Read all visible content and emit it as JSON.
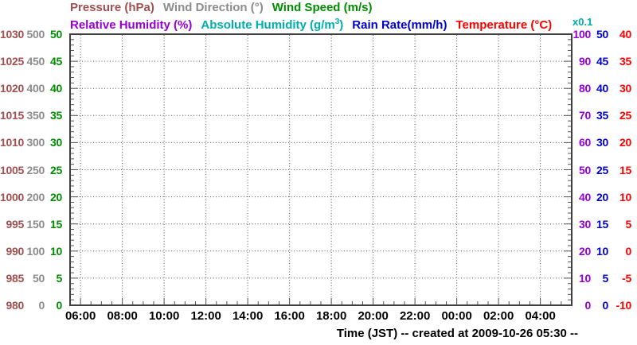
{
  "title_rows": [
    [
      {
        "name": "pressure",
        "label": "Pressure (hPa)",
        "color": "#A05050"
      },
      {
        "name": "wind-direction",
        "label": "Wind Direction (°)",
        "color": "#8C8C8C"
      },
      {
        "name": "wind-speed",
        "label": "Wind Speed (m/s)",
        "color": "#008C00"
      }
    ],
    [
      {
        "name": "relative-humidity",
        "label": "Relative Humidity (%)",
        "color": "#9400D3"
      },
      {
        "name": "absolute-humidity",
        "label": "Absolute Humidity (g/m",
        "sup": "3",
        "label_end": ")",
        "color": "#00ADAD"
      },
      {
        "name": "rain-rate",
        "label": "Rain Rate(mm/h)",
        "color": "#0000CD"
      },
      {
        "name": "temperature",
        "label": "Temperature (°C)",
        "color": "#FF0000"
      }
    ]
  ],
  "multiplier": {
    "text": "x0.1",
    "color": "#00ADAD"
  },
  "x_caption": "Time (JST) -- created at 2009-10-26 05:30 --",
  "chart_data": {
    "type": "line",
    "series": [],
    "x_axis": {
      "label": "Time (JST)",
      "created_note": "created at 2009-10-26 05:30",
      "tick_labels": [
        "06:00",
        "08:00",
        "10:00",
        "12:00",
        "14:00",
        "16:00",
        "18:00",
        "20:00",
        "22:00",
        "00:00",
        "02:00",
        "04:00"
      ],
      "start": "05:30",
      "hours_span": 24,
      "major_tick_every_hours": 2,
      "minor_tick_every_hours": 0.5,
      "grid": "dotted vertical lines at 2-hour major ticks"
    },
    "y_axes_left": [
      {
        "name": "Pressure (hPa)",
        "color": "#A05050",
        "ticks": [
          1030,
          1025,
          1020,
          1015,
          1010,
          1005,
          1000,
          995,
          990,
          985,
          980
        ],
        "min": 980,
        "max": 1030
      },
      {
        "name": "Wind Direction (°)",
        "color": "#8C8C8C",
        "ticks": [
          500,
          450,
          400,
          350,
          300,
          250,
          200,
          150,
          100,
          50,
          0
        ],
        "min": 0,
        "max": 500
      },
      {
        "name": "Wind Speed (m/s)",
        "color": "#008C00",
        "ticks": [
          50,
          45,
          40,
          35,
          30,
          25,
          20,
          15,
          10,
          5,
          0
        ],
        "min": 0,
        "max": 50
      }
    ],
    "y_axes_right": [
      {
        "name": "Relative Humidity (%)",
        "color": "#9400D3",
        "ticks": [
          100,
          90,
          80,
          70,
          60,
          50,
          40,
          30,
          20,
          10,
          0
        ],
        "min": 0,
        "max": 100
      },
      {
        "name": "Rain Rate (mm/h)",
        "color": "#0000CD",
        "ticks": [
          50,
          45,
          40,
          35,
          30,
          25,
          20,
          15,
          10,
          5,
          0
        ],
        "min": 0,
        "max": 50
      },
      {
        "name": "Temperature (°C)",
        "color": "#FF0000",
        "ticks": [
          40,
          35,
          30,
          25,
          20,
          15,
          10,
          5,
          0,
          -5,
          -10
        ],
        "min": -10,
        "max": 40
      }
    ],
    "grid": {
      "style": "dotted",
      "color": "#555555",
      "horizontal": "at each labeled row"
    }
  }
}
